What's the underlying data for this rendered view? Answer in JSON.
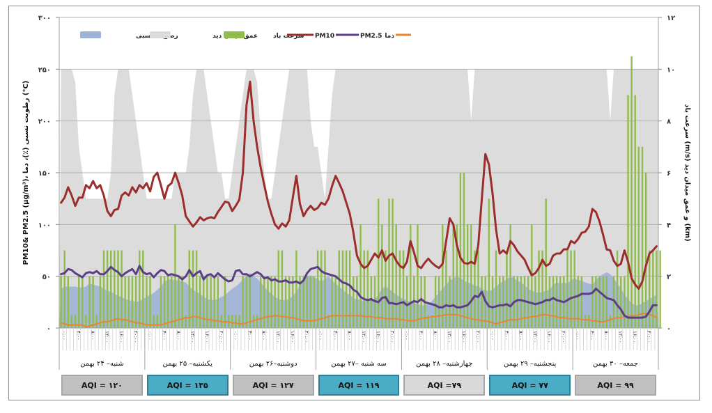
{
  "chart_data": {
    "type": "line",
    "title": "",
    "left_axis": {
      "label": "PM10& PM2.5 (µg/m³)، رطوبت نسبی (٪)، دما (°C)",
      "ylim": [
        0,
        300
      ],
      "ticks": [
        0,
        50,
        100,
        150,
        200,
        250,
        300
      ],
      "tick_labels": [
        "۰",
        "۵۰",
        "۱۰۰",
        "۱۵۰",
        "۲۰۰",
        "۲۵۰",
        "۳۰۰"
      ]
    },
    "right_axis": {
      "label": "سرعت باد (m/s) و عمق میدان دید (km)",
      "ylim": [
        0,
        12
      ],
      "ticks": [
        0,
        2,
        4,
        6,
        8,
        10,
        12
      ],
      "tick_labels": [
        "۰",
        "۲",
        "۴",
        "۶",
        "۸",
        "۱۰",
        "۱۲"
      ]
    },
    "grid": true,
    "legend_position": "top",
    "legend": [
      {
        "label": "رطوبت نسبی",
        "type": "area",
        "color": "#9db3d6",
        "key": "humidity"
      },
      {
        "label": "عمق میدان دید",
        "type": "area",
        "color": "#dcdcdc",
        "key": "visibility"
      },
      {
        "label": "سرعت باد",
        "type": "bar",
        "color": "#8fbc4a",
        "key": "wind"
      },
      {
        "label": "PM10",
        "type": "line",
        "color": "#9b2d2d",
        "key": "pm10"
      },
      {
        "label": "PM2.5",
        "type": "line",
        "color": "#5b3f86",
        "key": "pm25"
      },
      {
        "label": "دما",
        "type": "line",
        "color": "#e8852e",
        "key": "temp"
      }
    ],
    "hour_labels": [
      "۰:۰۰",
      "۴:۰۰",
      "۸:۰۰",
      "۱۲:۰۰",
      "۱۶:۰۰",
      "۲۰:۰۰"
    ],
    "days": [
      {
        "label": "شنبه– ۲۴ بهمن",
        "aqi": "AQI = ۱۲۰",
        "aqi_value": 120,
        "aqi_color": "#c0c0c0"
      },
      {
        "label": "یکشنبه– ۲۵ بهمن",
        "aqi": "AQI = ۱۳۵",
        "aqi_value": 135,
        "aqi_color": "#4bacc6"
      },
      {
        "label": "دوشنبه–۲۶ بهمن",
        "aqi": "AQI = ۱۲۷",
        "aqi_value": 127,
        "aqi_color": "#c0c0c0"
      },
      {
        "label": "سه شنبه –۲۷ بهمن",
        "aqi": "AQI = ۱۱۹",
        "aqi_value": 119,
        "aqi_color": "#4bacc6"
      },
      {
        "label": "چهارشنبه– ۲۸ بهمن",
        "aqi": "AQI =۷۹",
        "aqi_value": 79,
        "aqi_color": "#d9d9d9"
      },
      {
        "label": "پنجشنبه– ۲۹ بهمن",
        "aqi": "AQI = ۷۷",
        "aqi_value": 77,
        "aqi_color": "#4bacc6"
      },
      {
        "label": "جمعه– ۳۰ بهمن",
        "aqi": "AQI = ۹۹",
        "aqi_value": 99,
        "aqi_color": "#c0c0c0"
      }
    ],
    "series": {
      "pm10": [
        121,
        126,
        136,
        128,
        118,
        126,
        126,
        138,
        135,
        142,
        135,
        138,
        128,
        113,
        108,
        114,
        115,
        128,
        131,
        128,
        136,
        131,
        138,
        135,
        140,
        132,
        146,
        150,
        138,
        125,
        137,
        140,
        150,
        140,
        128,
        108,
        103,
        98,
        102,
        107,
        104,
        106,
        107,
        106,
        112,
        117,
        122,
        121,
        113,
        118,
        124,
        150,
        215,
        238,
        200,
        175,
        155,
        138,
        122,
        110,
        100,
        96,
        101,
        98,
        104,
        126,
        147,
        120,
        108,
        114,
        118,
        114,
        116,
        121,
        119,
        125,
        137,
        147,
        140,
        132,
        121,
        110,
        92,
        70,
        62,
        58,
        60,
        66,
        72,
        68,
        75,
        65,
        70,
        72,
        65,
        60,
        58,
        64,
        84,
        73,
        60,
        58,
        63,
        67,
        63,
        60,
        58,
        62,
        84,
        106,
        100,
        80,
        68,
        63,
        62,
        64,
        62,
        80,
        125,
        168,
        158,
        130,
        95,
        72,
        75,
        72,
        84,
        80,
        74,
        70,
        66,
        58,
        51,
        53,
        58,
        66,
        60,
        62,
        70,
        72,
        72,
        76,
        76,
        84,
        82,
        86,
        92,
        93,
        98,
        115,
        112,
        103,
        90,
        76,
        75,
        65,
        60,
        62,
        75,
        64,
        48,
        42,
        38,
        45,
        60,
        72,
        75,
        79
      ],
      "pm25": [
        52,
        53,
        57,
        56,
        53,
        51,
        49,
        53,
        54,
        53,
        55,
        52,
        52,
        55,
        59,
        56,
        54,
        50,
        53,
        55,
        57,
        52,
        60,
        54,
        52,
        53,
        49,
        53,
        56,
        55,
        51,
        52,
        51,
        50,
        47,
        50,
        56,
        50,
        53,
        55,
        47,
        51,
        52,
        49,
        53,
        50,
        47,
        45,
        46,
        55,
        56,
        52,
        52,
        50,
        52,
        54,
        52,
        48,
        49,
        46,
        47,
        45,
        45,
        46,
        44,
        44,
        45,
        43,
        46,
        53,
        57,
        58,
        59,
        55,
        53,
        52,
        51,
        50,
        47,
        44,
        43,
        41,
        37,
        35,
        30,
        28,
        27,
        28,
        26,
        25,
        29,
        30,
        24,
        24,
        23,
        24,
        25,
        22,
        24,
        26,
        25,
        28,
        25,
        24,
        23,
        22,
        20,
        20,
        22,
        21,
        22,
        20,
        20,
        21,
        22,
        26,
        31,
        30,
        35,
        26,
        21,
        20,
        21,
        22,
        22,
        23,
        21,
        25,
        27,
        27,
        26,
        25,
        24,
        23,
        24,
        25,
        27,
        27,
        29,
        27,
        26,
        25,
        27,
        29,
        30,
        31,
        33,
        33,
        33,
        34,
        38,
        35,
        32,
        29,
        28,
        27,
        22,
        18,
        12,
        10,
        10,
        10,
        10,
        10,
        11,
        16,
        22,
        22
      ],
      "temp": [
        5,
        4,
        3,
        3,
        3,
        3,
        3,
        1,
        2,
        3,
        4,
        5,
        6,
        6,
        7,
        8,
        9,
        8,
        8,
        7,
        6,
        5,
        5,
        4,
        3,
        3,
        3,
        3,
        3,
        4,
        5,
        6,
        7,
        8,
        9,
        10,
        10,
        11,
        11,
        10,
        9,
        8,
        8,
        7,
        7,
        6,
        6,
        6,
        5,
        5,
        4,
        4,
        5,
        6,
        7,
        8,
        9,
        10,
        11,
        11,
        12,
        12,
        11,
        11,
        10,
        10,
        9,
        8,
        7,
        7,
        7,
        7,
        8,
        9,
        10,
        11,
        12,
        12,
        12,
        12,
        12,
        12,
        12,
        12,
        12,
        11,
        11,
        11,
        10,
        10,
        10,
        9,
        9,
        9,
        9,
        8,
        8,
        7,
        7,
        7,
        8,
        9,
        10,
        10,
        11,
        11,
        12,
        12,
        13,
        13,
        13,
        13,
        12,
        11,
        10,
        9,
        8,
        8,
        7,
        7,
        6,
        5,
        4,
        5,
        6,
        7,
        8,
        8,
        8,
        9,
        10,
        10,
        11,
        11,
        12,
        13,
        13,
        12,
        12,
        11,
        10,
        10,
        9,
        9,
        9,
        9,
        8,
        8,
        8,
        7,
        7,
        6,
        6,
        7,
        8,
        9,
        10,
        10,
        11,
        11,
        12,
        12,
        13,
        14,
        14,
        13,
        12,
        10
      ],
      "humidity": [
        38,
        40,
        40,
        40,
        40,
        39,
        39,
        40,
        43,
        42,
        41,
        40,
        38,
        36,
        35,
        33,
        31,
        30,
        28,
        27,
        26,
        25,
        26,
        28,
        30,
        32,
        34,
        37,
        40,
        45,
        47,
        47,
        46,
        46,
        45,
        44,
        40,
        37,
        35,
        33,
        30,
        28,
        27,
        27,
        28,
        30,
        32,
        35,
        38,
        40,
        43,
        47,
        50,
        53,
        50,
        48,
        44,
        40,
        36,
        33,
        30,
        28,
        27,
        27,
        28,
        31,
        35,
        42,
        47,
        50,
        51,
        49,
        47,
        45,
        47,
        50,
        46,
        43,
        40,
        37,
        34,
        32,
        29,
        28,
        27,
        26,
        26,
        27,
        28,
        32,
        38,
        40,
        38,
        35,
        32,
        30,
        28,
        27,
        25,
        24,
        23,
        22,
        22,
        23,
        26,
        30,
        34,
        38,
        42,
        46,
        48,
        50,
        48,
        46,
        44,
        43,
        41,
        40,
        38,
        36,
        36,
        37,
        40,
        43,
        45,
        47,
        50,
        48,
        46,
        44,
        41,
        38,
        36,
        35,
        34,
        35,
        36,
        37,
        42,
        44,
        43,
        44,
        43,
        46,
        48,
        46,
        46,
        44,
        43,
        42,
        46,
        50,
        52,
        54,
        52,
        48,
        43,
        38,
        32,
        28,
        24,
        22,
        22,
        24,
        26,
        28,
        30,
        32
      ],
      "visibility": [
        10,
        10,
        10,
        10,
        9.5,
        7,
        6,
        5,
        5,
        5,
        5,
        5,
        5,
        5,
        6,
        9,
        10,
        10,
        10,
        10,
        9,
        8,
        7,
        6,
        5,
        5,
        5,
        5,
        5,
        5,
        5,
        5,
        6,
        6,
        6,
        6,
        7,
        9,
        10,
        10,
        10,
        9,
        8,
        7,
        6,
        6,
        5,
        5,
        6,
        7,
        8,
        9,
        10,
        10,
        10,
        9.5,
        7.5,
        6,
        5,
        5,
        6,
        7,
        8,
        9,
        10,
        10,
        10,
        10,
        10,
        10,
        8,
        7,
        7,
        6,
        5,
        7,
        9,
        10,
        10,
        10,
        10,
        10,
        10,
        10,
        10,
        10,
        10,
        10,
        10,
        10,
        10,
        10,
        10,
        10,
        10,
        10,
        10,
        10,
        10,
        10,
        10,
        10,
        10,
        10,
        10,
        10,
        10,
        10,
        10,
        10,
        10,
        10,
        10,
        10,
        10,
        8,
        10,
        10,
        10,
        10,
        10,
        10,
        10,
        10,
        10,
        10,
        10,
        10,
        10,
        10,
        10,
        10,
        10,
        10,
        10,
        10,
        10,
        10,
        10,
        10,
        10,
        10,
        10,
        10,
        10,
        10,
        10,
        10,
        10,
        10,
        10,
        10,
        10,
        10,
        8,
        10,
        10,
        10,
        10,
        10,
        10,
        10,
        10,
        10,
        10,
        10,
        10,
        10,
        10,
        10,
        10
      ],
      "wind": [
        2,
        3,
        2,
        0.5,
        0.5,
        2,
        2,
        0.5,
        2,
        2,
        0.5,
        2,
        3,
        3,
        3,
        3,
        3,
        3,
        2,
        2,
        2,
        2,
        3,
        3,
        2,
        2,
        0.5,
        0.5,
        2,
        2,
        2,
        2,
        4,
        2,
        2,
        0.5,
        3,
        3,
        3,
        2,
        2,
        2,
        2,
        2,
        2,
        0.5,
        2,
        0.5,
        0.5,
        0.5,
        0.5,
        2,
        2,
        2,
        0.5,
        0.5,
        2,
        2,
        2,
        2,
        2,
        3,
        3,
        2,
        2,
        2,
        3,
        2,
        2,
        2,
        2,
        2,
        3,
        3,
        3,
        0.5,
        2,
        2,
        3,
        3,
        3,
        3,
        2,
        2,
        4,
        3,
        3,
        2,
        2,
        5,
        4,
        3,
        5,
        5,
        4,
        3,
        3,
        2,
        4,
        2,
        4,
        2,
        2,
        0.5,
        0.5,
        2,
        2,
        4,
        3,
        2,
        4,
        4,
        6,
        6,
        4,
        4,
        3,
        3,
        2,
        2,
        5,
        2,
        3,
        2,
        2,
        3,
        4,
        2,
        2,
        2,
        2,
        2,
        4,
        2,
        3,
        3,
        5,
        2,
        2,
        2,
        2,
        2,
        3,
        3,
        3,
        2,
        2,
        0.5,
        0.5,
        2,
        2,
        2,
        2,
        2,
        0.5,
        2,
        3,
        2,
        2,
        9,
        10.5,
        9,
        7,
        7,
        6,
        3,
        3,
        3,
        3
      ]
    }
  }
}
